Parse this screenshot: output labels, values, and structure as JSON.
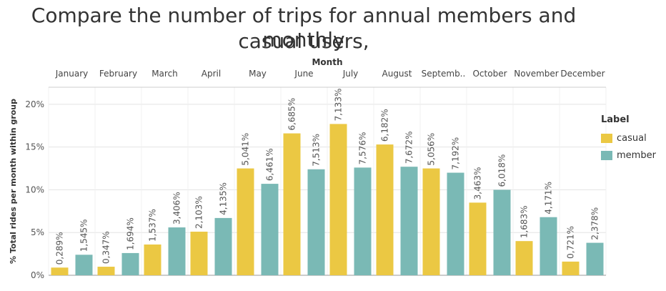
{
  "title_line1": "Compare the number of trips for annual members and casual users,",
  "title_line2": "monthly",
  "colors": {
    "casual": "#EBC843",
    "member": "#7AB9B5",
    "grid": "#e4e4e4",
    "axis": "#999999"
  },
  "chart_data": {
    "type": "bar",
    "title": "Compare the number of trips for annual members and casual users, monthly",
    "column_header": "Month",
    "ylabel": "% Total rides per month within group",
    "ylim": [
      0,
      22
    ],
    "yticks": [
      0,
      5,
      10,
      15,
      20
    ],
    "ytick_labels": [
      "0%",
      "5%",
      "10%",
      "15%",
      "20%"
    ],
    "categories": [
      "January",
      "February",
      "March",
      "April",
      "May",
      "June",
      "July",
      "August",
      "Septemb..",
      "October",
      "November",
      "December"
    ],
    "legend_title": "Label",
    "legend_position": "right",
    "series": [
      {
        "name": "casual",
        "values": [
          0.9,
          1.0,
          3.6,
          5.1,
          12.5,
          16.6,
          17.7,
          15.3,
          12.5,
          8.5,
          4.0,
          1.6
        ],
        "labels": [
          "0,289%",
          "0,347%",
          "1,537%",
          "2,103%",
          "5,041%",
          "6,685%",
          "7,133%",
          "6,182%",
          "5,056%",
          "3,463%",
          "1,683%",
          "0,721%"
        ]
      },
      {
        "name": "member",
        "values": [
          2.4,
          2.6,
          5.6,
          6.7,
          10.7,
          12.4,
          12.6,
          12.7,
          12.0,
          10.0,
          6.8,
          3.8
        ],
        "labels": [
          "1,545%",
          "1,694%",
          "3,406%",
          "4,135%",
          "6,461%",
          "7,513%",
          "7,576%",
          "7,672%",
          "7,192%",
          "6,018%",
          "4,171%",
          "2,378%"
        ]
      }
    ]
  }
}
